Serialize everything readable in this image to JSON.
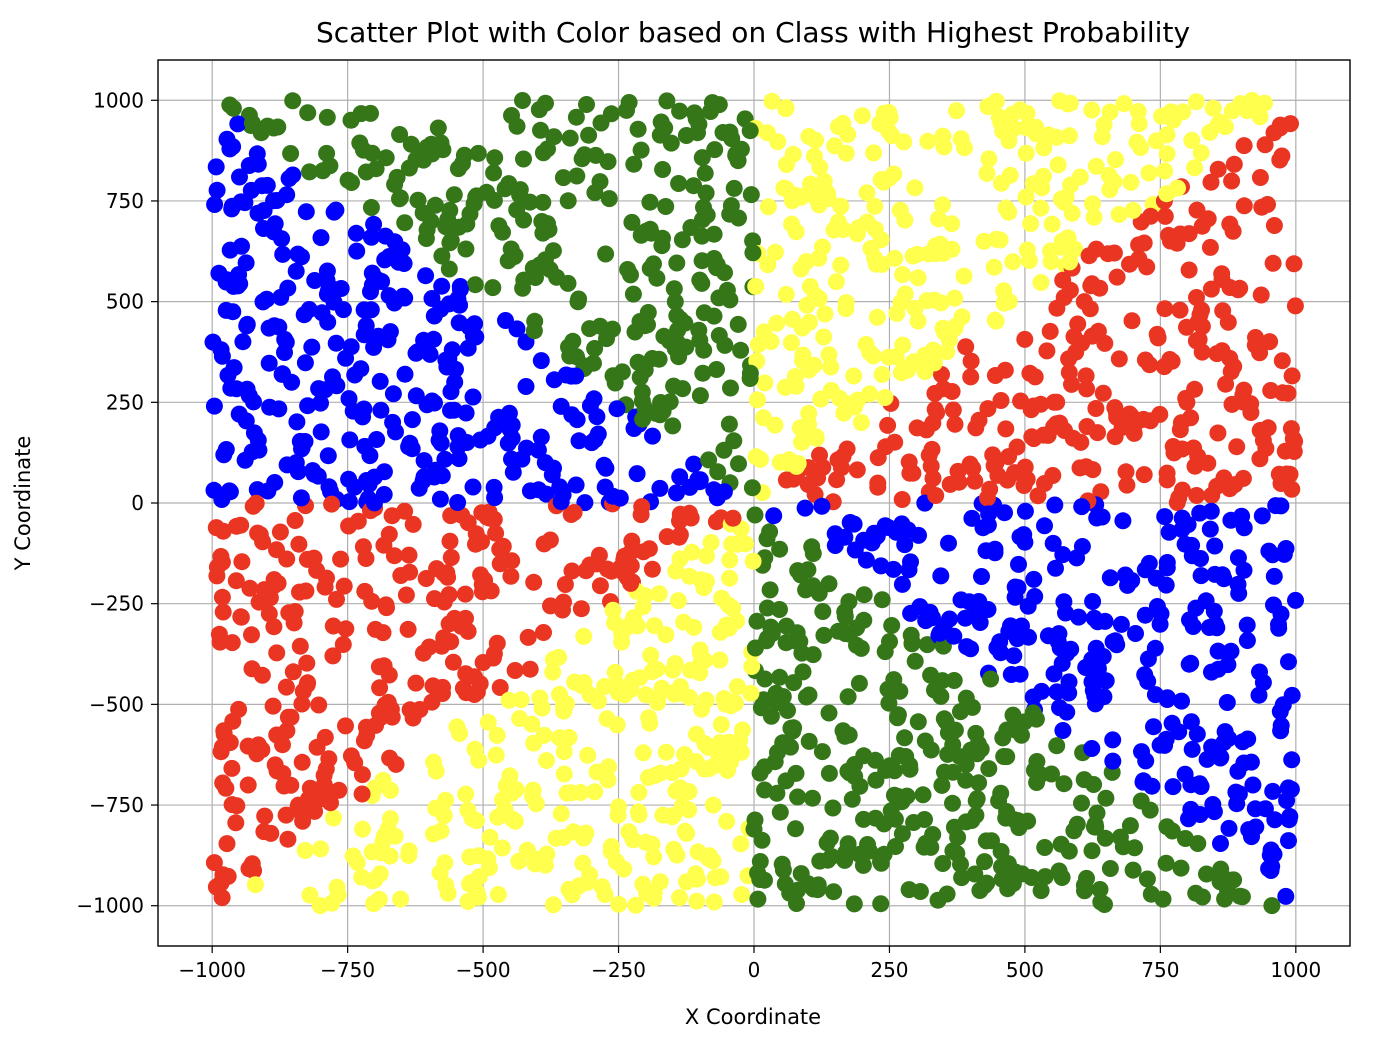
{
  "chart_data": {
    "type": "scatter",
    "title": "Scatter Plot with Color based on Class with Highest Probability",
    "xlabel": "X Coordinate",
    "ylabel": "Y Coordinate",
    "xlim": [
      -1100,
      1100
    ],
    "ylim": [
      -1100,
      1100
    ],
    "x_ticks": [
      -1000,
      -750,
      -500,
      -250,
      0,
      250,
      500,
      750,
      1000
    ],
    "y_ticks": [
      -1000,
      -750,
      -500,
      -250,
      0,
      250,
      500,
      750,
      1000
    ],
    "x_tick_labels": [
      "−1000",
      "−750",
      "−500",
      "−250",
      "0",
      "250",
      "500",
      "750",
      "1000"
    ],
    "y_tick_labels": [
      "−1000",
      "−750",
      "−500",
      "−250",
      "0",
      "250",
      "500",
      "750",
      "1000"
    ],
    "grid": true,
    "legend": "none",
    "colors": {
      "class_yellow": "#ffff4d",
      "class_red": "#e93522",
      "class_blue": "#0000ff",
      "class_green": "#347618"
    },
    "data_range": {
      "x": [
        -1000,
        1000
      ],
      "y": [
        -1000,
        1000
      ]
    },
    "n_points": 2400,
    "series": [
      {
        "color_key": "class_yellow",
        "x": [
          -900,
          -700,
          -450,
          -200,
          -50,
          150,
          300,
          500,
          700,
          900
        ],
        "y": [
          -960,
          -820,
          -700,
          -400,
          -150,
          250,
          500,
          700,
          880,
          960
        ]
      },
      {
        "color_key": "class_red",
        "x": [
          -980,
          -900,
          -700,
          -500,
          -300,
          150,
          400,
          700,
          900,
          990
        ],
        "y": [
          -900,
          -500,
          -300,
          -150,
          -40,
          40,
          200,
          400,
          600,
          900
        ]
      },
      {
        "color_key": "class_blue",
        "x": [
          -980,
          -900,
          -800,
          -600,
          -300,
          300,
          600,
          800,
          900,
          980
        ],
        "y": [
          900,
          600,
          300,
          150,
          50,
          -50,
          -200,
          -400,
          -600,
          -900
        ]
      },
      {
        "color_key": "class_green",
        "x": [
          -900,
          -600,
          -400,
          -200,
          -50,
          50,
          200,
          400,
          700,
          900
        ],
        "y": [
          960,
          900,
          700,
          450,
          150,
          -150,
          -450,
          -700,
          -900,
          -960
        ]
      }
    ]
  }
}
